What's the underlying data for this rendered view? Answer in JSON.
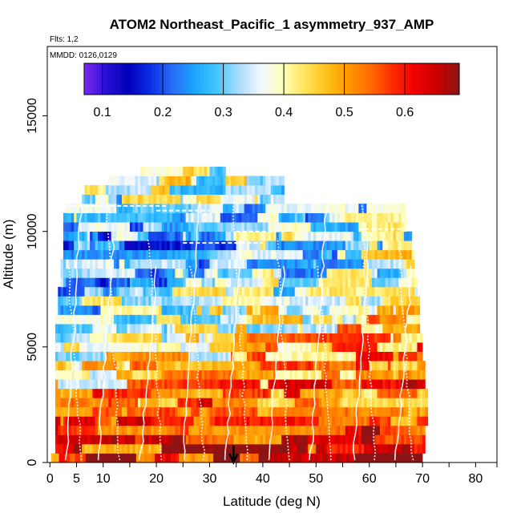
{
  "chart_data": {
    "type": "heatmap",
    "title": "ATOM2 Northeast_Pacific_1 asymmetry_937_AMP",
    "flights_label": "Flts: 1,2",
    "date_label": "MMDD: 0126,0129",
    "xlabel": "Latitude (deg N)",
    "ylabel": "Altitude (m)",
    "xlim": [
      -0.5,
      84
    ],
    "ylim": [
      0,
      18000
    ],
    "x_ticks": [
      0,
      5,
      10,
      20,
      30,
      40,
      50,
      60,
      70,
      80
    ],
    "x_minor_ticks": [
      15,
      25,
      35,
      45,
      55,
      65,
      75,
      85
    ],
    "y_ticks": [
      0,
      5000,
      10000,
      15000
    ],
    "colorbar": {
      "range": [
        0.07,
        0.69
      ],
      "ticks": [
        0.1,
        0.2,
        0.3,
        0.4,
        0.5,
        0.6
      ],
      "colors": [
        "#7b2bf0",
        "#2a0fd6",
        "#0000b8",
        "#0a2ee6",
        "#2a6cf5",
        "#1aa6ff",
        "#43c6ff",
        "#a9dcff",
        "#f2f8ff",
        "#ffffb8",
        "#ffe45c",
        "#ffc01a",
        "#ff9700",
        "#ff6a00",
        "#ff2a00",
        "#f00000",
        "#c80000",
        "#8c1414"
      ]
    },
    "altitude_bins_m": [
      0,
      400,
      800,
      1200,
      1600,
      2000,
      2400,
      2800,
      3200,
      3600,
      4000,
      4400,
      4800,
      5200,
      5600,
      6000,
      6400,
      6800,
      7200,
      7600,
      8000,
      8400,
      8800,
      9200,
      9600,
      10000,
      10400,
      10800,
      11200,
      11600,
      12000,
      12400,
      12800
    ],
    "latitude_extent_by_bin": [
      [
        0.2,
        70.0
      ],
      [
        1.0,
        70.5
      ],
      [
        1.0,
        70.5
      ],
      [
        1.0,
        70.5
      ],
      [
        1.0,
        71.0
      ],
      [
        1.0,
        71.0
      ],
      [
        1.0,
        71.0
      ],
      [
        1.0,
        71.0
      ],
      [
        1.0,
        70.5
      ],
      [
        1.0,
        70.5
      ],
      [
        1.0,
        70.5
      ],
      [
        1.0,
        70.0
      ],
      [
        1.0,
        70.0
      ],
      [
        1.0,
        70.0
      ],
      [
        1.0,
        69.5
      ],
      [
        1.0,
        69.5
      ],
      [
        1.5,
        69.5
      ],
      [
        1.5,
        69.5
      ],
      [
        1.5,
        69.0
      ],
      [
        2.0,
        69.0
      ],
      [
        2.0,
        68.5
      ],
      [
        2.0,
        68.5
      ],
      [
        2.5,
        68.5
      ],
      [
        2.5,
        68.0
      ],
      [
        2.5,
        68.0
      ],
      [
        2.5,
        67.0
      ],
      [
        2.5,
        67.0
      ],
      [
        3.0,
        67.0
      ],
      [
        6.0,
        44.0
      ],
      [
        6.5,
        44.0
      ],
      [
        11.0,
        44.0
      ],
      [
        17.0,
        33.0
      ]
    ],
    "asymmetry_profile": [
      {
        "altitude_m": 200,
        "value": 0.62
      },
      {
        "altitude_m": 1000,
        "value": 0.6
      },
      {
        "altitude_m": 2000,
        "value": 0.56
      },
      {
        "altitude_m": 3000,
        "value": 0.52
      },
      {
        "altitude_m": 4000,
        "value": 0.48
      },
      {
        "altitude_m": 5000,
        "value": 0.44
      },
      {
        "altitude_m": 6000,
        "value": 0.4
      },
      {
        "altitude_m": 7000,
        "value": 0.36
      },
      {
        "altitude_m": 8000,
        "value": 0.32
      },
      {
        "altitude_m": 9000,
        "value": 0.3
      },
      {
        "altitude_m": 10000,
        "value": 0.3
      },
      {
        "altitude_m": 11000,
        "value": 0.33
      },
      {
        "altitude_m": 12000,
        "value": 0.38
      }
    ],
    "marker_latitude": 34.5
  }
}
